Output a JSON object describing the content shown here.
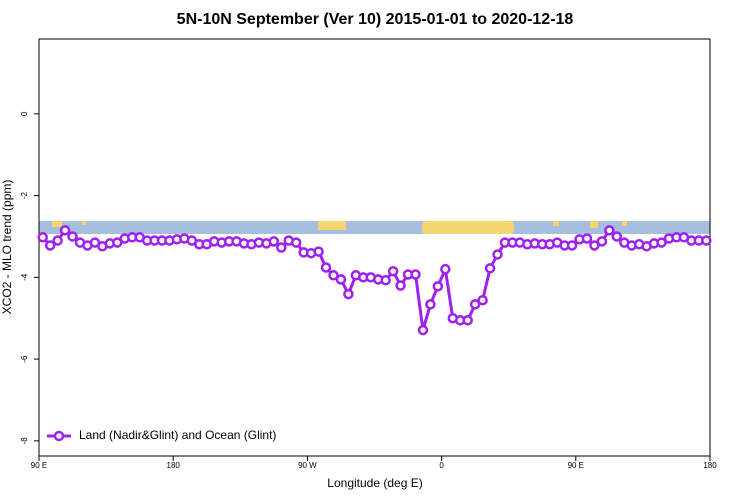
{
  "chart_data": {
    "type": "line",
    "title": "5N-10N September (Ver 10)   2015-01-01 to 2020-12-18",
    "x_label": "Longitude (deg E)",
    "y_label": "XCO2 - MLO trend (ppm)",
    "xlim": [
      90,
      540
    ],
    "ylim": [
      -8.37,
      1.83
    ],
    "xticks": [
      {
        "value": 90,
        "label": "90 E"
      },
      180,
      {
        "value": 270,
        "label": "90 W"
      },
      {
        "value": 360,
        "label": "0"
      },
      {
        "value": 450,
        "label": "90 E"
      },
      {
        "value": 540,
        "label": "180"
      }
    ],
    "yticks": [
      -8,
      -6,
      -4,
      -2,
      0
    ],
    "legend": "bottom-left",
    "series": [
      {
        "name": "Land (Nadir&Glint) and Ocean (Glint)",
        "color": "#a020f0",
        "x": [
          92.5,
          97.5,
          102.5,
          107.5,
          112.5,
          117.5,
          122.5,
          127.5,
          132.5,
          137.5,
          142.5,
          147.5,
          152.5,
          157.5,
          162.5,
          167.5,
          172.5,
          177.5,
          182.5,
          187.5,
          192.5,
          197.5,
          202.5,
          207.5,
          212.5,
          217.5,
          222.5,
          227.5,
          232.5,
          237.5,
          242.5,
          247.5,
          252.5,
          257.5,
          262.5,
          267.5,
          272.5,
          277.5,
          282.5,
          287.5,
          292.5,
          297.5,
          302.5,
          307.5,
          312.5,
          317.5,
          322.5,
          327.5,
          332.5,
          337.5,
          342.5,
          347.5,
          352.5,
          357.5,
          362.5,
          367.5,
          372.5,
          377.5,
          382.5,
          387.5,
          392.5,
          397.5,
          402.5,
          407.5,
          412.5,
          417.5,
          422.5,
          427.5,
          432.5,
          437.5,
          442.5,
          447.5,
          452.5,
          457.5,
          462.5,
          467.5,
          472.5,
          477.5,
          482.5,
          487.5,
          492.5,
          497.5,
          502.5,
          507.5,
          512.5,
          517.5,
          522.5,
          527.5,
          532.5,
          537.5
        ],
        "values": [
          -3.02,
          -3.22,
          -3.1,
          -2.85,
          -3.0,
          -3.15,
          -3.22,
          -3.15,
          -3.24,
          -3.17,
          -3.15,
          -3.05,
          -3.02,
          -3.02,
          -3.1,
          -3.1,
          -3.1,
          -3.1,
          -3.07,
          -3.05,
          -3.1,
          -3.19,
          -3.19,
          -3.12,
          -3.15,
          -3.12,
          -3.12,
          -3.17,
          -3.19,
          -3.15,
          -3.17,
          -3.12,
          -3.27,
          -3.1,
          -3.15,
          -3.39,
          -3.41,
          -3.37,
          -3.76,
          -3.95,
          -4.05,
          -4.41,
          -3.95,
          -4.0,
          -4.0,
          -4.05,
          -4.07,
          -3.85,
          -4.2,
          -3.93,
          -3.93,
          -5.29,
          -4.66,
          -4.22,
          -3.8,
          -5.0,
          -5.05,
          -5.05,
          -4.66,
          -4.56,
          -3.78,
          -3.44,
          -3.15,
          -3.15,
          -3.15,
          -3.19,
          -3.17,
          -3.19,
          -3.19,
          -3.15,
          -3.22,
          -3.22,
          -3.07,
          -3.05,
          -3.22,
          -3.12,
          -2.85,
          -3.0,
          -3.15,
          -3.22,
          -3.19,
          -3.24,
          -3.17,
          -3.15,
          -3.05,
          -3.02,
          -3.02,
          -3.1,
          -3.1,
          -3.1
        ]
      }
    ]
  }
}
